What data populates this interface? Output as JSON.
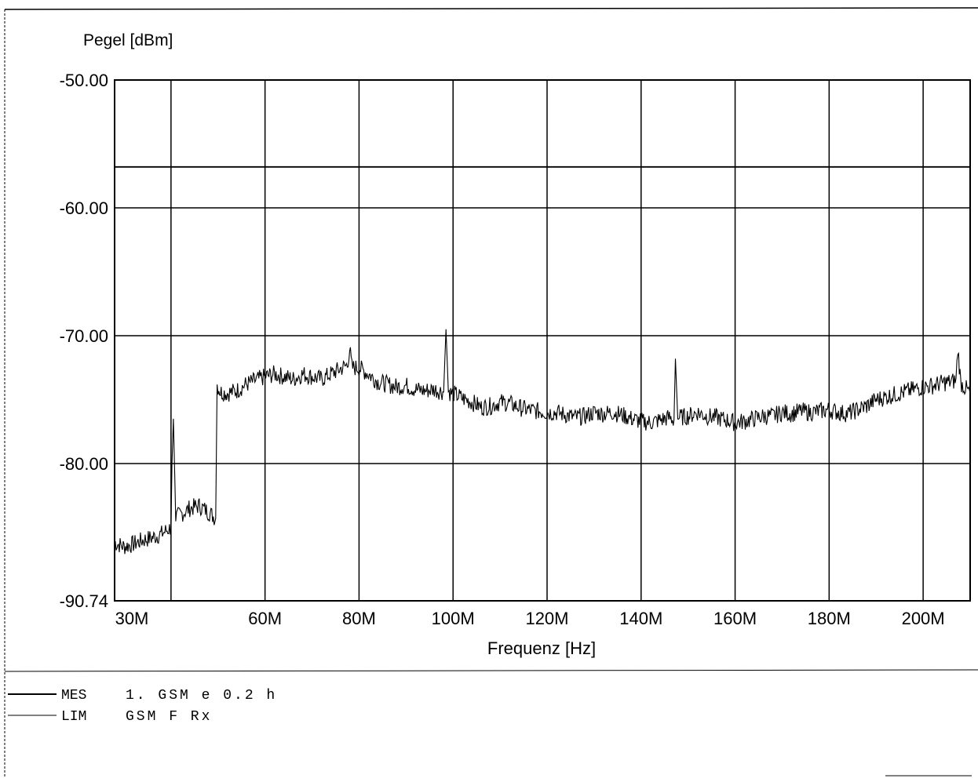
{
  "chart_data": {
    "type": "line",
    "ylabel": "Pegel [dBm]",
    "xlabel": "Frequenz [Hz]",
    "ylim": [
      -90.74,
      -50.0
    ],
    "xlim": [
      28,
      210
    ],
    "y_ticks": [
      -50.0,
      -60.0,
      -70.0,
      -80.0,
      -90.74
    ],
    "y_tick_labels": [
      "-50.00",
      "-60.00",
      "-70.00",
      "-80.00",
      "-90.74"
    ],
    "x_ticks": [
      30,
      60,
      80,
      100,
      120,
      140,
      160,
      180,
      200
    ],
    "x_tick_labels": [
      "30M",
      "60M",
      "80M",
      "100M",
      "120M",
      "140M",
      "160M",
      "180M",
      "200M"
    ],
    "x_gridlines": [
      40,
      60,
      80,
      100,
      120,
      140,
      160,
      180,
      200
    ],
    "grid": true,
    "series": [
      {
        "name": "MES",
        "legend_text": "1. GSM e 0.2 h",
        "x": [
          28,
          30,
          32,
          34,
          36,
          38,
          40,
          40.2,
          40.5,
          41,
          42,
          44,
          46,
          48,
          49.5,
          49.8,
          50,
          50.5,
          52,
          54,
          56,
          58,
          60,
          62,
          64,
          66,
          68,
          70,
          72,
          74,
          76,
          77.5,
          78,
          78.5,
          80,
          82,
          84,
          86,
          88,
          90,
          92,
          94,
          96,
          98,
          98.5,
          99,
          99.5,
          100,
          102,
          104,
          106,
          108,
          110,
          112,
          114,
          116,
          118,
          120,
          122,
          124,
          126,
          128,
          130,
          132,
          134,
          136,
          138,
          140,
          142,
          144,
          146,
          147,
          147.3,
          147.8,
          148,
          150,
          152,
          154,
          156,
          158,
          160,
          162,
          164,
          166,
          168,
          170,
          172,
          174,
          176,
          178,
          180,
          182,
          184,
          186,
          188,
          190,
          192,
          194,
          196,
          198,
          200,
          202,
          204,
          206,
          207,
          207.4,
          208,
          210
        ],
        "y": [
          -86.2,
          -86.5,
          -86.3,
          -86.0,
          -85.8,
          -85.5,
          -85.0,
          -80.0,
          -76.5,
          -84.2,
          -84.0,
          -83.5,
          -83.3,
          -83.8,
          -84.3,
          -73.8,
          -74.0,
          -74.4,
          -74.5,
          -74.3,
          -73.8,
          -73.5,
          -73.2,
          -73.0,
          -73.2,
          -73.4,
          -73.0,
          -73.2,
          -73.4,
          -73.0,
          -72.6,
          -72.3,
          -71.0,
          -72.5,
          -72.5,
          -73.0,
          -73.6,
          -73.8,
          -74.0,
          -73.9,
          -74.2,
          -74.3,
          -74.2,
          -74.4,
          -69.5,
          -74.3,
          -74.5,
          -74.5,
          -74.9,
          -75.2,
          -75.6,
          -75.5,
          -75.2,
          -75.3,
          -75.6,
          -75.8,
          -75.9,
          -76.0,
          -76.0,
          -76.2,
          -76.4,
          -76.3,
          -76.0,
          -76.1,
          -76.0,
          -76.2,
          -76.5,
          -76.7,
          -76.8,
          -76.6,
          -76.4,
          -76.6,
          -71.8,
          -76.5,
          -76.4,
          -76.3,
          -76.0,
          -76.3,
          -76.4,
          -76.6,
          -76.8,
          -76.7,
          -76.5,
          -76.3,
          -76.3,
          -76.0,
          -76.1,
          -75.9,
          -76.0,
          -75.9,
          -75.8,
          -76.0,
          -76.1,
          -75.8,
          -75.5,
          -75.0,
          -74.8,
          -74.6,
          -74.4,
          -74.2,
          -74.0,
          -73.9,
          -73.7,
          -73.6,
          -73.5,
          -71.0,
          -73.7,
          -74.5
        ]
      },
      {
        "name": "LIM",
        "legend_text": "GSM F Rx",
        "x": [
          28,
          210
        ],
        "y": [
          -56.8,
          -56.8
        ]
      }
    ],
    "legend_position": "bottom-left"
  }
}
